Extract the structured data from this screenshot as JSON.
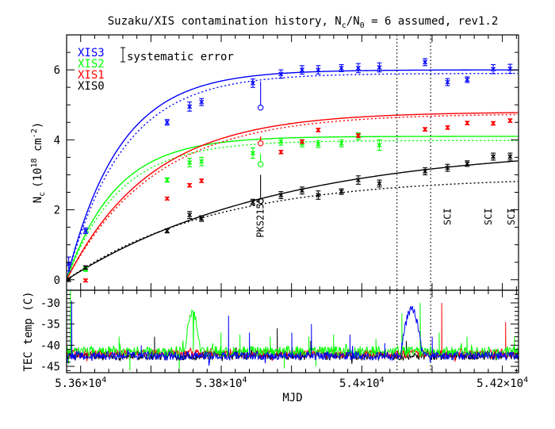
{
  "chart_data": [
    {
      "type": "scatter",
      "title": "Suzaku/XIS contamination history, N",
      "title_sub1": "c",
      "title_mid": "/N",
      "title_sub2": "0",
      "title_tail": " = 6 assumed, rev1.2",
      "ylabel": "N",
      "ylabel_sub": "c",
      "ylabel_unit": "(10",
      "ylabel_sup": "18",
      "ylabel_unit2": " cm",
      "ylabel_sup2": "-2",
      "ylabel_close": ")",
      "xlim": [
        53580,
        54223
      ],
      "ylim": [
        -0.3,
        7.0
      ],
      "yticks": [
        0,
        2,
        4,
        6
      ],
      "legend_errbar_label": "systematic error",
      "vlines": [
        54050,
        54098
      ],
      "annotations": [
        {
          "text": "PKS2155",
          "x": 53856,
          "y": 2.35
        },
        {
          "text": "SCI",
          "x": 54122,
          "y": 2.05
        },
        {
          "text": "SCI",
          "x": 54180,
          "y": 2.05
        },
        {
          "text": "SCI",
          "x": 54213,
          "y": 2.05
        }
      ],
      "series": [
        {
          "name": "XIS3",
          "color": "#0000ff",
          "model_solid": {
            "a": 6.0,
            "tau": 75
          },
          "model_dotted": {
            "a": 5.9,
            "tau": 80
          },
          "points": [
            {
              "x": 53583,
              "y": 0.45,
              "err": 0.2
            },
            {
              "x": 53607,
              "y": 1.4,
              "err": 0.08
            },
            {
              "x": 53723,
              "y": 4.5,
              "err": 0.08
            },
            {
              "x": 53755,
              "y": 4.95,
              "err": 0.13
            },
            {
              "x": 53772,
              "y": 5.08,
              "err": 0.1
            },
            {
              "x": 53845,
              "y": 5.62,
              "err": 0.12
            },
            {
              "x": 53885,
              "y": 5.88,
              "err": 0.12
            },
            {
              "x": 53915,
              "y": 6.0,
              "err": 0.12
            },
            {
              "x": 53938,
              "y": 6.0,
              "err": 0.12
            },
            {
              "x": 53971,
              "y": 6.05,
              "err": 0.1
            },
            {
              "x": 53995,
              "y": 6.05,
              "err": 0.13
            },
            {
              "x": 54025,
              "y": 6.07,
              "err": 0.13
            },
            {
              "x": 54090,
              "y": 6.22,
              "err": 0.1
            },
            {
              "x": 54122,
              "y": 5.65,
              "err": 0.1
            },
            {
              "x": 54150,
              "y": 5.72,
              "err": 0.08
            },
            {
              "x": 54187,
              "y": 6.02,
              "err": 0.13
            },
            {
              "x": 54211,
              "y": 6.03,
              "err": 0.13
            }
          ],
          "open_point": {
            "x": 53856,
            "y": 4.92,
            "err_up": 0.75
          }
        },
        {
          "name": "XIS2",
          "color": "#00ff00",
          "model_solid": {
            "a": 4.1,
            "tau": 70
          },
          "model_dotted": {
            "a": 3.98,
            "tau": 74
          },
          "points": [
            {
              "x": 53607,
              "y": 0.3,
              "err": 0.06
            },
            {
              "x": 53723,
              "y": 2.85,
              "err": 0.06
            },
            {
              "x": 53755,
              "y": 3.35,
              "err": 0.12
            },
            {
              "x": 53772,
              "y": 3.38,
              "err": 0.12
            },
            {
              "x": 53845,
              "y": 3.62,
              "err": 0.15
            },
            {
              "x": 53885,
              "y": 3.95,
              "err": 0.1
            },
            {
              "x": 53915,
              "y": 3.9,
              "err": 0.1
            },
            {
              "x": 53938,
              "y": 3.88,
              "err": 0.1
            },
            {
              "x": 53971,
              "y": 3.9,
              "err": 0.1
            },
            {
              "x": 53995,
              "y": 4.1,
              "err": 0.1
            },
            {
              "x": 54025,
              "y": 3.85,
              "err": 0.15
            }
          ],
          "open_point": {
            "x": 53856,
            "y": 3.3,
            "err_up": 0.3
          }
        },
        {
          "name": "XIS1",
          "color": "#ff0000",
          "model_solid": {
            "a": 4.8,
            "tau": 120
          },
          "model_dotted": {
            "a": 4.75,
            "tau": 125
          },
          "points": [
            {
              "x": 53607,
              "y": -0.02,
              "err": 0.04
            },
            {
              "x": 53723,
              "y": 2.32,
              "err": 0.04
            },
            {
              "x": 53755,
              "y": 2.7,
              "err": 0.05
            },
            {
              "x": 53772,
              "y": 2.83,
              "err": 0.05
            },
            {
              "x": 53885,
              "y": 3.65,
              "err": 0.05
            },
            {
              "x": 53915,
              "y": 3.95,
              "err": 0.05
            },
            {
              "x": 53938,
              "y": 4.28,
              "err": 0.05
            },
            {
              "x": 53995,
              "y": 4.12,
              "err": 0.05
            },
            {
              "x": 54090,
              "y": 4.3,
              "err": 0.05
            },
            {
              "x": 54122,
              "y": 4.35,
              "err": 0.05
            },
            {
              "x": 54150,
              "y": 4.48,
              "err": 0.05
            },
            {
              "x": 54187,
              "y": 4.47,
              "err": 0.05
            },
            {
              "x": 54211,
              "y": 4.55,
              "err": 0.05
            }
          ],
          "open_point": {
            "x": 53856,
            "y": 3.9,
            "err_up": 0.2
          }
        },
        {
          "name": "XIS0",
          "color": "#000000",
          "model_solid": {
            "a": 3.85,
            "tau": 300
          },
          "model_dotted": {
            "a": 2.95,
            "tau": 210
          },
          "points": [
            {
              "x": 53583,
              "y": 0.0,
              "err": 0.05
            },
            {
              "x": 53607,
              "y": 0.35,
              "err": 0.05
            },
            {
              "x": 53723,
              "y": 1.4,
              "err": 0.06
            },
            {
              "x": 53755,
              "y": 1.85,
              "err": 0.1
            },
            {
              "x": 53772,
              "y": 1.75,
              "err": 0.08
            },
            {
              "x": 53845,
              "y": 2.22,
              "err": 0.08
            },
            {
              "x": 53885,
              "y": 2.42,
              "err": 0.1
            },
            {
              "x": 53915,
              "y": 2.55,
              "err": 0.1
            },
            {
              "x": 53938,
              "y": 2.42,
              "err": 0.12
            },
            {
              "x": 53971,
              "y": 2.52,
              "err": 0.08
            },
            {
              "x": 53995,
              "y": 2.85,
              "err": 0.12
            },
            {
              "x": 54025,
              "y": 2.75,
              "err": 0.1
            },
            {
              "x": 54090,
              "y": 3.1,
              "err": 0.1
            },
            {
              "x": 54122,
              "y": 3.2,
              "err": 0.1
            },
            {
              "x": 54150,
              "y": 3.32,
              "err": 0.08
            },
            {
              "x": 54187,
              "y": 3.52,
              "err": 0.1
            },
            {
              "x": 54211,
              "y": 3.52,
              "err": 0.1
            }
          ],
          "open_point": {
            "x": 53856,
            "y": 2.25,
            "err_up": 0.75
          }
        }
      ]
    },
    {
      "type": "line",
      "ylabel": "TEC temp (C)",
      "xlabel": "MJD",
      "xlim": [
        53580,
        54223
      ],
      "ylim": [
        -46.5,
        -27
      ],
      "yticks": [
        -30,
        -35,
        -40,
        -45
      ],
      "xticks": [
        {
          "value": 53600,
          "mant": "5.36",
          "exp": "4"
        },
        {
          "value": 53800,
          "mant": "5.38",
          "exp": "4"
        },
        {
          "value": 54000,
          "mant": "5.4",
          "exp": "4"
        },
        {
          "value": 54200,
          "mant": "5.42",
          "exp": "4"
        }
      ],
      "tick_mult": "×10",
      "vlines": [
        54050,
        54098
      ],
      "series": [
        {
          "name": "XIS0",
          "color": "#000000",
          "base": -42.5,
          "noise": 1.0,
          "spikes": [
            [
              53705,
              -38
            ],
            [
              53880,
              -36
            ],
            [
              53927,
              -39
            ],
            [
              54063,
              -39
            ]
          ]
        },
        {
          "name": "XIS1",
          "color": "#ff0000",
          "base": -42.0,
          "noise": 0.9,
          "spikes": [
            [
              54114,
              -30
            ],
            [
              54205,
              -34.5
            ]
          ]
        },
        {
          "name": "XIS2",
          "color": "#00ff00",
          "base": -41.5,
          "noise": 1.3,
          "spikes": [
            [
              53585,
              -26.8
            ],
            [
              53655,
              -38
            ],
            [
              53760,
              -33
            ],
            [
              53800,
              -37
            ],
            [
              53827,
              -37.5
            ],
            [
              53870,
              -38
            ],
            [
              53925,
              -38
            ],
            [
              53960,
              -37.5
            ],
            [
              54020,
              -38.5
            ],
            [
              54057,
              -32.5
            ],
            [
              54083,
              -30
            ],
            [
              54110,
              -37
            ],
            [
              54150,
              -38
            ],
            [
              54217,
              -38
            ]
          ],
          "dips": [
            [
              53583,
              -44.5
            ],
            [
              53670,
              -46
            ],
            [
              53740,
              -46.5
            ],
            [
              53890,
              -45.5
            ],
            [
              53935,
              -45
            ]
          ],
          "hump": {
            "x0": 53748,
            "x1": 53775,
            "peak": -32
          }
        },
        {
          "name": "XIS3",
          "color": "#0000ff",
          "base": -42.5,
          "noise": 1.0,
          "spikes": [
            [
              53587,
              -29.5
            ],
            [
              53686,
              -40
            ],
            [
              53810,
              -33
            ],
            [
              53840,
              -37
            ],
            [
              53900,
              -37
            ],
            [
              53928,
              -35
            ],
            [
              53983,
              -37.5
            ],
            [
              54033,
              -39.5
            ],
            [
              54100,
              -38
            ]
          ],
          "hump": {
            "x0": 54055,
            "x1": 54093,
            "peak": -31.5
          }
        }
      ]
    }
  ]
}
